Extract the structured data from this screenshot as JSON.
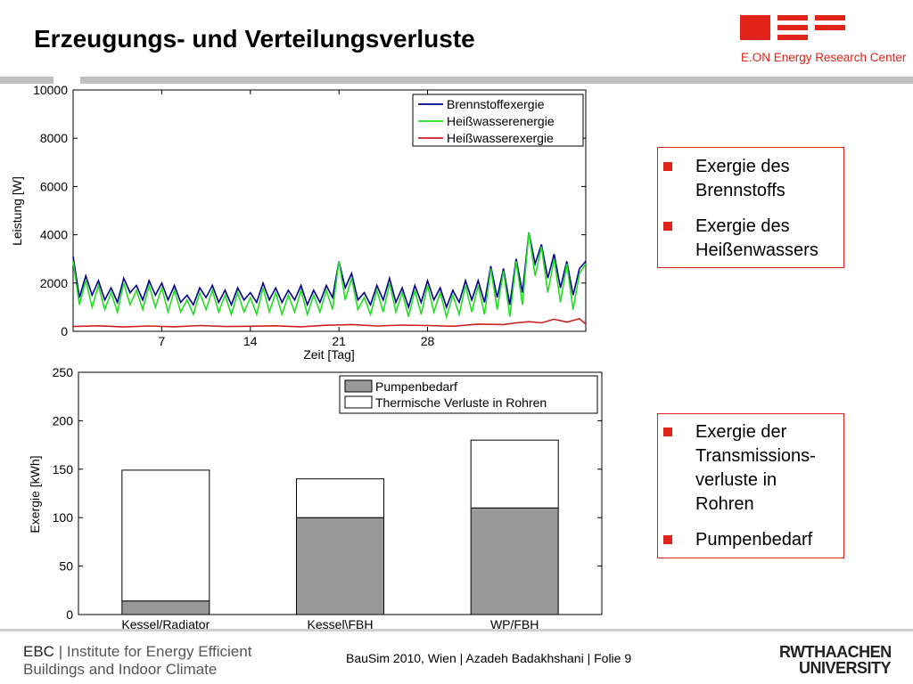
{
  "header": {
    "title": "Erzeugungs- und Verteilungsverluste",
    "logo_text": "E.ON Energy Research Center",
    "logo_color": "#e2231a"
  },
  "bullets_top": [
    "Exergie des Brennstoffs",
    "Exergie des Heißenwassers"
  ],
  "bullets_bottom": [
    "Exergie der Transmissions-verluste in Rohren",
    "Pumpenbedarf"
  ],
  "footer": {
    "left_line1_a": "EBC",
    "left_line1_b": "Institute for Energy Efficient",
    "left_line2": "Buildings and Indoor Climate",
    "center": "BauSim 2010, Wien | Azadeh Badakhshani | Folie 9",
    "logo_line1": "RWTHAACHEN",
    "logo_line2": "UNIVERSITY"
  },
  "chart_data": [
    {
      "type": "line",
      "ylabel": "Leistung [W]",
      "xlabel": "Zeit [Tag]",
      "xlim": [
        0,
        40.5
      ],
      "ylim": [
        0,
        10000
      ],
      "xticks": [
        7,
        14,
        21,
        28
      ],
      "yticks": [
        0,
        2000,
        4000,
        6000,
        8000,
        10000
      ],
      "legend_position": "top-right",
      "series": [
        {
          "name": "Brennstoffexergie",
          "color": "#00008b",
          "x": [
            0,
            0.5,
            1,
            1.5,
            2,
            2.5,
            3,
            3.5,
            4,
            4.5,
            5,
            5.5,
            6,
            6.5,
            7,
            7.5,
            8,
            8.5,
            9,
            9.5,
            10,
            10.5,
            11,
            11.5,
            12,
            12.5,
            13,
            13.5,
            14,
            14.5,
            15,
            15.5,
            16,
            16.5,
            17,
            17.5,
            18,
            18.5,
            19,
            19.5,
            20,
            20.5,
            21,
            21.5,
            22,
            22.5,
            23,
            23.5,
            24,
            24.5,
            25,
            25.5,
            26,
            26.5,
            27,
            27.5,
            28,
            28.5,
            29,
            29.5,
            30,
            30.5,
            31,
            31.5,
            32,
            32.5,
            33,
            33.5,
            34,
            34.5,
            35,
            35.5,
            36,
            36.5,
            37,
            37.5,
            38,
            38.5,
            39,
            39.5,
            40,
            40.5
          ],
          "values": [
            3100,
            1400,
            2300,
            1500,
            2100,
            1300,
            1800,
            1200,
            2200,
            1600,
            1900,
            1300,
            2100,
            1500,
            2000,
            1300,
            1900,
            1200,
            1500,
            1100,
            1800,
            1400,
            1900,
            1200,
            1700,
            1100,
            1800,
            1300,
            1600,
            1200,
            2000,
            1300,
            1800,
            1200,
            1700,
            1300,
            1900,
            1100,
            1700,
            1200,
            1900,
            1400,
            2900,
            1800,
            2400,
            1300,
            1600,
            1100,
            1900,
            1300,
            2200,
            1200,
            1800,
            1000,
            1900,
            1200,
            2100,
            1300,
            1800,
            1000,
            1700,
            1200,
            2100,
            1300,
            2100,
            1200,
            2700,
            1400,
            2600,
            1100,
            3000,
            1600,
            4100,
            2800,
            3600,
            2200,
            3200,
            1800,
            2900,
            1500,
            2600,
            2900
          ]
        },
        {
          "name": "Heißwasserenergie",
          "color": "#22dd22",
          "x": [
            0,
            0.5,
            1,
            1.5,
            2,
            2.5,
            3,
            3.5,
            4,
            4.5,
            5,
            5.5,
            6,
            6.5,
            7,
            7.5,
            8,
            8.5,
            9,
            9.5,
            10,
            10.5,
            11,
            11.5,
            12,
            12.5,
            13,
            13.5,
            14,
            14.5,
            15,
            15.5,
            16,
            16.5,
            17,
            17.5,
            18,
            18.5,
            19,
            19.5,
            20,
            20.5,
            21,
            21.5,
            22,
            22.5,
            23,
            23.5,
            24,
            24.5,
            25,
            25.5,
            26,
            26.5,
            27,
            27.5,
            28,
            28.5,
            29,
            29.5,
            30,
            30.5,
            31,
            31.5,
            32,
            32.5,
            33,
            33.5,
            34,
            34.5,
            35,
            35.5,
            36,
            36.5,
            37,
            37.5,
            38,
            38.5,
            39,
            39.5,
            40,
            40.5
          ],
          "values": [
            2900,
            1100,
            2100,
            1000,
            1900,
            900,
            1600,
            800,
            2000,
            1100,
            1700,
            900,
            1900,
            1000,
            1800,
            800,
            1700,
            800,
            1300,
            700,
            1600,
            900,
            1700,
            800,
            1500,
            700,
            1600,
            800,
            1400,
            700,
            1800,
            800,
            1600,
            700,
            1500,
            800,
            1700,
            700,
            1500,
            800,
            1700,
            900,
            2900,
            1300,
            2200,
            900,
            1400,
            700,
            1700,
            800,
            2000,
            800,
            1600,
            600,
            1700,
            700,
            1900,
            800,
            1600,
            600,
            1500,
            700,
            1900,
            800,
            1900,
            700,
            2600,
            900,
            2500,
            600,
            2900,
            1100,
            4100,
            2300,
            3500,
            1600,
            3000,
            1200,
            2800,
            900,
            2400,
            2800
          ]
        },
        {
          "name": "Heißwasserexergie",
          "color": "#cc2020",
          "x": [
            0,
            2,
            4,
            6,
            8,
            10,
            12,
            14,
            16,
            18,
            20,
            22,
            24,
            26,
            28,
            30,
            32,
            34,
            35,
            36,
            37,
            38,
            39,
            40,
            40.5
          ],
          "values": [
            200,
            230,
            180,
            220,
            190,
            240,
            200,
            210,
            230,
            190,
            250,
            280,
            220,
            260,
            240,
            210,
            300,
            280,
            350,
            400,
            350,
            500,
            380,
            520,
            300
          ]
        }
      ]
    },
    {
      "type": "bar",
      "stacked": true,
      "ylabel": "Exergie [kWh]",
      "xlabel": "",
      "ylim": [
        0,
        250
      ],
      "yticks": [
        0,
        50,
        100,
        150,
        200,
        250
      ],
      "legend_position": "top-right",
      "categories": [
        "Kessel/Radiator",
        "Kessel\\FBH",
        "WP/FBH"
      ],
      "series": [
        {
          "name": "Pumpenbedarf",
          "color": "#999999",
          "values": [
            14,
            100,
            110
          ]
        },
        {
          "name": "Thermische Verluste in Rohren",
          "color": "#ffffff",
          "values": [
            135,
            40,
            70
          ]
        }
      ]
    }
  ]
}
